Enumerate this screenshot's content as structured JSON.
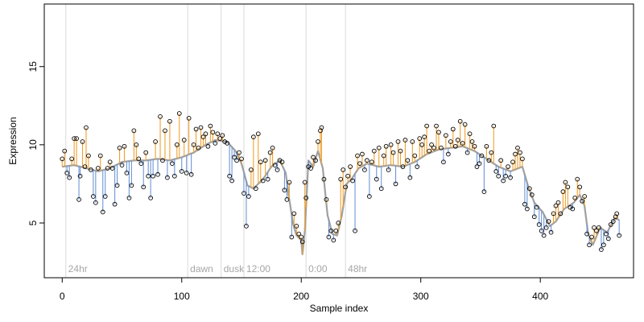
{
  "chart_data": {
    "type": "line",
    "title": "",
    "xlabel": "Sample index",
    "ylabel": "Expression",
    "xlim": [
      -15,
      478
    ],
    "ylim": [
      1.5,
      19
    ],
    "x_ticks": [
      0,
      100,
      200,
      300,
      400
    ],
    "y_ticks": [
      5,
      10,
      15
    ],
    "grid": false,
    "legend": "none",
    "colors": {
      "fit_line": "#a0a0a0",
      "residual_above": "#f0a030",
      "residual_below": "#6e96d6",
      "point_edge": "#000000",
      "phase_line": "#d9d9d9",
      "phase_label": "#a6a6a6"
    },
    "phase_markers": [
      {
        "x": 3,
        "label": "24hr"
      },
      {
        "x": 105,
        "label": "dawn"
      },
      {
        "x": 133,
        "label": "dusk"
      },
      {
        "x": 152,
        "label": "12:00"
      },
      {
        "x": 204,
        "label": "0:00"
      },
      {
        "x": 237,
        "label": "48hr"
      }
    ],
    "fit_anchors": [
      [
        0,
        8.6
      ],
      [
        10,
        8.7
      ],
      [
        20,
        8.5
      ],
      [
        30,
        8.3
      ],
      [
        40,
        8.5
      ],
      [
        50,
        8.9
      ],
      [
        60,
        9.0
      ],
      [
        70,
        9.0
      ],
      [
        80,
        9.1
      ],
      [
        90,
        9.0
      ],
      [
        100,
        9.2
      ],
      [
        110,
        9.5
      ],
      [
        120,
        10.0
      ],
      [
        128,
        10.3
      ],
      [
        138,
        10.2
      ],
      [
        145,
        9.6
      ],
      [
        150,
        8.8
      ],
      [
        155,
        7.4
      ],
      [
        160,
        7.2
      ],
      [
        168,
        7.8
      ],
      [
        175,
        8.6
      ],
      [
        182,
        9.0
      ],
      [
        187,
        8.2
      ],
      [
        190,
        6.5
      ],
      [
        193,
        5.0
      ],
      [
        196,
        4.2
      ],
      [
        200,
        3.9
      ],
      [
        201,
        3.0
      ],
      [
        203,
        4.5
      ],
      [
        206,
        9.0
      ],
      [
        210,
        8.6
      ],
      [
        214,
        9.6
      ],
      [
        218,
        8.5
      ],
      [
        222,
        5.5
      ],
      [
        226,
        4.3
      ],
      [
        230,
        4.2
      ],
      [
        234,
        5.5
      ],
      [
        238,
        7.5
      ],
      [
        242,
        7.8
      ],
      [
        248,
        8.5
      ],
      [
        255,
        8.8
      ],
      [
        265,
        8.6
      ],
      [
        275,
        8.7
      ],
      [
        285,
        8.6
      ],
      [
        295,
        8.9
      ],
      [
        305,
        9.4
      ],
      [
        315,
        9.7
      ],
      [
        325,
        9.8
      ],
      [
        335,
        9.9
      ],
      [
        345,
        9.6
      ],
      [
        355,
        9.1
      ],
      [
        365,
        8.6
      ],
      [
        375,
        8.3
      ],
      [
        385,
        8.6
      ],
      [
        390,
        7.3
      ],
      [
        395,
        6.3
      ],
      [
        402,
        5.7
      ],
      [
        408,
        4.8
      ],
      [
        413,
        5.1
      ],
      [
        420,
        5.9
      ],
      [
        428,
        6.3
      ],
      [
        433,
        6.8
      ],
      [
        437,
        6.1
      ],
      [
        440,
        4.3
      ],
      [
        444,
        3.6
      ],
      [
        450,
        4.7
      ],
      [
        456,
        4.4
      ],
      [
        462,
        5.3
      ],
      [
        466,
        5.2
      ]
    ],
    "point_anchors": [
      [
        0,
        9.1
      ],
      [
        2,
        9.6
      ],
      [
        4,
        8.2
      ],
      [
        6,
        7.9
      ],
      [
        8,
        9.1
      ],
      [
        10,
        10.4
      ],
      [
        12,
        10.4
      ],
      [
        14,
        6.5
      ],
      [
        15,
        8.0
      ],
      [
        17,
        10.2
      ],
      [
        19,
        8.6
      ],
      [
        20,
        11.1
      ],
      [
        22,
        9.3
      ],
      [
        24,
        8.4
      ],
      [
        26,
        6.7
      ],
      [
        28,
        6.3
      ],
      [
        30,
        8.5
      ],
      [
        32,
        9.3
      ],
      [
        34,
        5.7
      ],
      [
        36,
        6.7
      ],
      [
        38,
        8.5
      ],
      [
        40,
        8.9
      ],
      [
        42,
        8.5
      ],
      [
        44,
        6.2
      ],
      [
        46,
        7.4
      ],
      [
        48,
        9.8
      ],
      [
        50,
        8.7
      ],
      [
        52,
        9.9
      ],
      [
        54,
        8.2
      ],
      [
        56,
        6.6
      ],
      [
        58,
        7.4
      ],
      [
        60,
        10.9
      ],
      [
        62,
        10.0
      ],
      [
        64,
        9.1
      ],
      [
        66,
        8.8
      ],
      [
        68,
        7.3
      ],
      [
        70,
        9.5
      ],
      [
        72,
        8.0
      ],
      [
        74,
        6.6
      ],
      [
        76,
        8.0
      ],
      [
        78,
        10.2
      ],
      [
        80,
        8.1
      ],
      [
        82,
        11.8
      ],
      [
        84,
        9.0
      ],
      [
        86,
        10.9
      ],
      [
        88,
        7.9
      ],
      [
        90,
        11.5
      ],
      [
        92,
        8.8
      ],
      [
        94,
        8.0
      ],
      [
        96,
        10.0
      ],
      [
        98,
        12.0
      ],
      [
        100,
        8.3
      ],
      [
        102,
        10.3
      ],
      [
        104,
        8.2
      ],
      [
        106,
        11.7
      ],
      [
        108,
        8.1
      ],
      [
        110,
        10.0
      ],
      [
        112,
        11.0
      ],
      [
        114,
        9.8
      ],
      [
        116,
        11.1
      ],
      [
        118,
        10.5
      ],
      [
        120,
        10.7
      ],
      [
        122,
        9.9
      ],
      [
        124,
        11.2
      ],
      [
        126,
        10.8
      ],
      [
        128,
        10.1
      ],
      [
        130,
        10.7
      ],
      [
        132,
        10.4
      ],
      [
        134,
        10.6
      ],
      [
        136,
        10.2
      ],
      [
        138,
        10.1
      ],
      [
        140,
        8.0
      ],
      [
        142,
        7.7
      ],
      [
        144,
        9.2
      ],
      [
        146,
        9.0
      ],
      [
        148,
        9.5
      ],
      [
        150,
        9.1
      ],
      [
        152,
        6.9
      ],
      [
        154,
        4.8
      ],
      [
        156,
        6.7
      ],
      [
        158,
        8.4
      ],
      [
        160,
        10.5
      ],
      [
        162,
        7.2
      ],
      [
        164,
        10.7
      ],
      [
        166,
        8.9
      ],
      [
        168,
        7.7
      ],
      [
        170,
        9.0
      ],
      [
        172,
        7.8
      ],
      [
        174,
        9.5
      ],
      [
        176,
        9.8
      ],
      [
        178,
        8.7
      ],
      [
        180,
        8.4
      ],
      [
        182,
        9.0
      ],
      [
        184,
        8.9
      ],
      [
        186,
        7.1
      ],
      [
        188,
        6.5
      ],
      [
        190,
        7.6
      ],
      [
        192,
        4.1
      ],
      [
        194,
        5.6
      ],
      [
        196,
        4.8
      ],
      [
        198,
        4.3
      ],
      [
        200,
        4.1
      ],
      [
        201,
        3.8
      ],
      [
        203,
        7.6
      ],
      [
        204,
        6.6
      ],
      [
        206,
        8.6
      ],
      [
        208,
        8.5
      ],
      [
        210,
        9.2
      ],
      [
        212,
        9.0
      ],
      [
        214,
        10.2
      ],
      [
        216,
        10.9
      ],
      [
        217,
        11.1
      ],
      [
        219,
        7.8
      ],
      [
        221,
        6.5
      ],
      [
        223,
        4.1
      ],
      [
        225,
        4.5
      ],
      [
        227,
        3.9
      ],
      [
        229,
        4.5
      ],
      [
        231,
        5.0
      ],
      [
        233,
        7.8
      ],
      [
        235,
        8.4
      ],
      [
        237,
        7.3
      ],
      [
        239,
        8.0
      ],
      [
        241,
        8.6
      ],
      [
        243,
        7.7
      ],
      [
        245,
        4.5
      ],
      [
        247,
        9.3
      ],
      [
        249,
        8.8
      ],
      [
        251,
        9.4
      ],
      [
        253,
        8.4
      ],
      [
        255,
        9.0
      ],
      [
        257,
        6.7
      ],
      [
        259,
        8.9
      ],
      [
        261,
        9.6
      ],
      [
        263,
        7.8
      ],
      [
        265,
        9.8
      ],
      [
        267,
        7.2
      ],
      [
        269,
        9.3
      ],
      [
        271,
        9.9
      ],
      [
        273,
        8.4
      ],
      [
        275,
        10.0
      ],
      [
        277,
        9.5
      ],
      [
        279,
        7.5
      ],
      [
        281,
        10.2
      ],
      [
        283,
        9.6
      ],
      [
        285,
        8.6
      ],
      [
        287,
        10.3
      ],
      [
        289,
        9.0
      ],
      [
        291,
        7.9
      ],
      [
        293,
        10.2
      ],
      [
        295,
        9.3
      ],
      [
        297,
        8.6
      ],
      [
        299,
        10.4
      ],
      [
        301,
        10.0
      ],
      [
        303,
        10.5
      ],
      [
        305,
        11.2
      ],
      [
        307,
        9.6
      ],
      [
        309,
        10.0
      ],
      [
        311,
        9.8
      ],
      [
        313,
        11.2
      ],
      [
        315,
        10.8
      ],
      [
        317,
        9.8
      ],
      [
        319,
        8.9
      ],
      [
        321,
        10.6
      ],
      [
        323,
        9.4
      ],
      [
        325,
        10.2
      ],
      [
        327,
        11.0
      ],
      [
        329,
        9.9
      ],
      [
        331,
        10.3
      ],
      [
        333,
        11.5
      ],
      [
        335,
        10.1
      ],
      [
        337,
        11.3
      ],
      [
        339,
        9.5
      ],
      [
        341,
        10.7
      ],
      [
        343,
        10.2
      ],
      [
        345,
        9.9
      ],
      [
        347,
        8.6
      ],
      [
        349,
        8.8
      ],
      [
        351,
        9.3
      ],
      [
        353,
        7.0
      ],
      [
        355,
        9.9
      ],
      [
        357,
        9.0
      ],
      [
        359,
        9.5
      ],
      [
        361,
        11.2
      ],
      [
        363,
        8.3
      ],
      [
        365,
        8.0
      ],
      [
        367,
        9.0
      ],
      [
        369,
        7.7
      ],
      [
        371,
        8.0
      ],
      [
        373,
        8.6
      ],
      [
        375,
        7.9
      ],
      [
        377,
        8.9
      ],
      [
        379,
        9.4
      ],
      [
        381,
        9.8
      ],
      [
        383,
        9.5
      ],
      [
        385,
        9.1
      ],
      [
        387,
        6.2
      ],
      [
        389,
        5.9
      ],
      [
        391,
        7.2
      ],
      [
        393,
        6.8
      ],
      [
        395,
        5.4
      ],
      [
        397,
        6.0
      ],
      [
        399,
        4.9
      ],
      [
        401,
        4.5
      ],
      [
        403,
        4.2
      ],
      [
        405,
        4.7
      ],
      [
        407,
        5.1
      ],
      [
        409,
        4.4
      ],
      [
        411,
        5.6
      ],
      [
        413,
        6.1
      ],
      [
        415,
        6.3
      ],
      [
        417,
        5.6
      ],
      [
        419,
        7.0
      ],
      [
        421,
        7.6
      ],
      [
        423,
        7.3
      ],
      [
        425,
        6.0
      ],
      [
        427,
        5.9
      ],
      [
        429,
        6.6
      ],
      [
        431,
        7.8
      ],
      [
        433,
        7.3
      ],
      [
        435,
        6.4
      ],
      [
        437,
        6.7
      ],
      [
        439,
        4.3
      ],
      [
        441,
        3.6
      ],
      [
        443,
        4.1
      ],
      [
        445,
        4.7
      ],
      [
        447,
        4.5
      ],
      [
        449,
        4.7
      ],
      [
        451,
        3.3
      ],
      [
        453,
        3.6
      ],
      [
        455,
        4.3
      ],
      [
        457,
        4.0
      ],
      [
        459,
        4.9
      ],
      [
        461,
        5.1
      ],
      [
        463,
        5.4
      ],
      [
        464,
        5.6
      ],
      [
        466,
        4.2
      ]
    ]
  }
}
